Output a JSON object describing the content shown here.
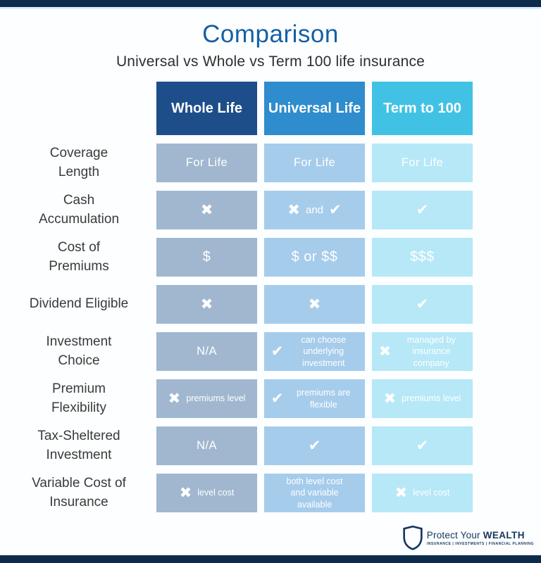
{
  "page": {
    "title": "Comparison",
    "subtitle": "Universal vs Whole vs Term 100 life insurance"
  },
  "colors": {
    "navy_bar": "#0e2b4c",
    "title_blue": "#1560a5",
    "label_text": "#3a3a3a",
    "logo_navy": "#16365c",
    "cell_text": "#ffffff"
  },
  "icons": {
    "x-icon": "✖",
    "check-icon": "✔"
  },
  "table": {
    "headers": [
      {
        "label": "Whole Life",
        "bg": "#1d4e8a"
      },
      {
        "label": "Universal Life",
        "bg": "#2f8ccd"
      },
      {
        "label": "Term to 100",
        "bg": "#41c2e5"
      }
    ],
    "cell_colors": [
      "#a0b7cf",
      "#a6cceb",
      "#b6e8f7"
    ],
    "rows": [
      {
        "label": "Coverage\nLength",
        "cells": [
          [
            {
              "v": "For Life"
            }
          ],
          [
            {
              "v": "For Life"
            }
          ],
          [
            {
              "v": "For Life"
            }
          ]
        ]
      },
      {
        "label": "Cash\nAccumulation",
        "cells": [
          [
            {
              "icon": "x-icon"
            }
          ],
          [
            {
              "icon": "x-icon"
            },
            {
              "v": "and",
              "style": "mid"
            },
            {
              "icon": "check-icon"
            }
          ],
          [
            {
              "icon": "check-icon"
            }
          ]
        ]
      },
      {
        "label": "Cost of\nPremiums",
        "cells": [
          [
            {
              "v": "$",
              "style": "money"
            }
          ],
          [
            {
              "v": "$ or $$",
              "style": "money"
            }
          ],
          [
            {
              "v": "$$$",
              "style": "money"
            }
          ]
        ]
      },
      {
        "label": "Dividend Eligible",
        "cells": [
          [
            {
              "icon": "x-icon"
            }
          ],
          [
            {
              "icon": "x-icon"
            }
          ],
          [
            {
              "icon": "check-icon"
            }
          ]
        ]
      },
      {
        "label": "Investment\nChoice",
        "cells": [
          [
            {
              "v": "N/A"
            }
          ],
          [
            {
              "icon": "check-icon"
            },
            {
              "v": "can choose underlying investment",
              "style": "small"
            }
          ],
          [
            {
              "icon": "x-icon"
            },
            {
              "v": "managed by insurance company",
              "style": "small"
            }
          ]
        ]
      },
      {
        "label": "Premium\nFlexibility",
        "cells": [
          [
            {
              "icon": "x-icon"
            },
            {
              "v": "premiums level",
              "style": "small"
            }
          ],
          [
            {
              "icon": "check-icon"
            },
            {
              "v": "premiums are flexible",
              "style": "small"
            }
          ],
          [
            {
              "icon": "x-icon"
            },
            {
              "v": "premiums level",
              "style": "small"
            }
          ]
        ]
      },
      {
        "label": "Tax-Sheltered\nInvestment",
        "cells": [
          [
            {
              "v": "N/A"
            }
          ],
          [
            {
              "icon": "check-icon"
            }
          ],
          [
            {
              "icon": "check-icon"
            }
          ]
        ]
      },
      {
        "label": "Variable Cost of\nInsurance",
        "cells": [
          [
            {
              "icon": "x-icon"
            },
            {
              "v": "level cost",
              "style": "small"
            }
          ],
          [
            {
              "v": "both level cost and variable available",
              "style": "small"
            }
          ],
          [
            {
              "icon": "x-icon"
            },
            {
              "v": "level cost",
              "style": "small"
            }
          ]
        ]
      }
    ]
  },
  "footer": {
    "brand_regular": "Protect Your ",
    "brand_bold": "WEALTH",
    "tagline": "INSURANCE  |  INVESTMENTS  |  FINANCIAL PLANNING"
  },
  "chart_data": {
    "type": "table",
    "title": "Comparison",
    "subtitle": "Universal vs Whole vs Term 100 life insurance",
    "columns": [
      "Whole Life",
      "Universal Life",
      "Term to 100"
    ],
    "rows": [
      {
        "feature": "Coverage Length",
        "values": [
          "For Life",
          "For Life",
          "For Life"
        ]
      },
      {
        "feature": "Cash Accumulation",
        "values": [
          "no",
          "no and yes",
          "yes"
        ]
      },
      {
        "feature": "Cost of Premiums",
        "values": [
          "$",
          "$ or $$",
          "$$$"
        ]
      },
      {
        "feature": "Dividend Eligible",
        "values": [
          "no",
          "no",
          "yes"
        ]
      },
      {
        "feature": "Investment Choice",
        "values": [
          "N/A",
          "yes - can choose underlying investment",
          "no - managed by insurance company"
        ]
      },
      {
        "feature": "Premium Flexibility",
        "values": [
          "no - premiums level",
          "yes - premiums are flexible",
          "no - premiums level"
        ]
      },
      {
        "feature": "Tax-Sheltered Investment",
        "values": [
          "N/A",
          "yes",
          "yes"
        ]
      },
      {
        "feature": "Variable Cost of Insurance",
        "values": [
          "no - level cost",
          "both level cost and variable available",
          "no - level cost"
        ]
      }
    ]
  }
}
